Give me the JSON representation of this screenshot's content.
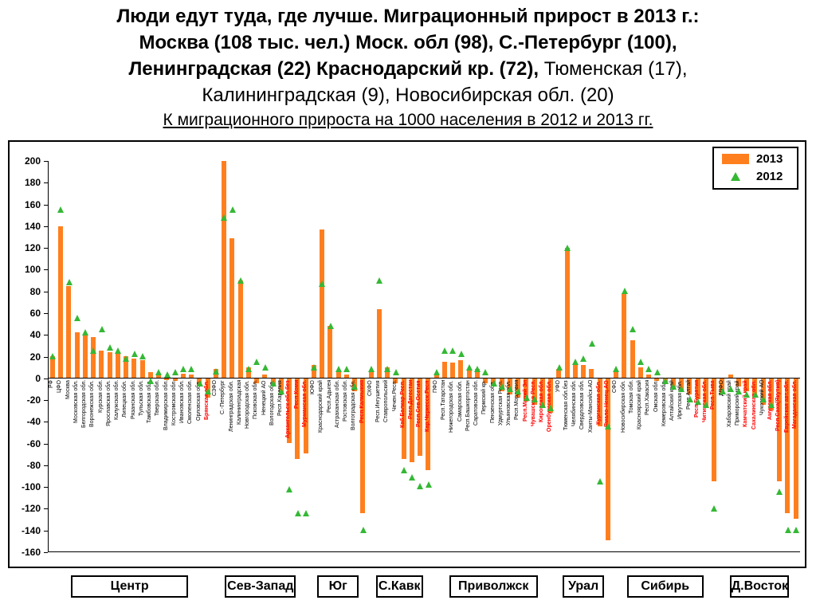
{
  "title": {
    "line1": "Люди едут туда, где лучше. Миграционный прирост в 2013 г.:",
    "line2": "Москва (108 тыс. чел.) Моск. обл (98), С.-Петербург (100),",
    "line3_bold": "Ленинградская (22) Краснодарский кр. (72),",
    "line3_regular": " Тюменская (17),",
    "line4": "Калининградская (9), Новосибирская обл. (20)",
    "subtitle": "К миграционного прироста на 1000 населения в 2012 и 2013 гг."
  },
  "colors": {
    "bar_2013": "#FF7F1F",
    "triangle_2012": "#35B835",
    "label_negative_red": "#FF0000",
    "label_black": "#000000"
  },
  "chart_data": {
    "type": "bar",
    "title": "К миграционного прироста на 1000 населения в 2012 и 2013 гг.",
    "ylim": [
      -160,
      200
    ],
    "ytick_step": 20,
    "yticks": [
      200,
      180,
      160,
      140,
      120,
      100,
      80,
      60,
      40,
      20,
      0,
      -20,
      -40,
      -60,
      -80,
      -100,
      -120,
      -140,
      -160
    ],
    "grid": false,
    "legend_position": "top-right",
    "series": [
      {
        "name": "2013",
        "type": "bar",
        "color": "#FF7F1F"
      },
      {
        "name": "2012",
        "type": "scatter",
        "marker": "triangle",
        "color": "#35B835"
      }
    ],
    "groups": [
      "Центр",
      "Сев-Запад",
      "Юг",
      "С.Кавк",
      "Приволжск",
      "Урал",
      "Сибирь",
      "Д.Восток"
    ],
    "regions": [
      {
        "name": "РФ",
        "v2013": 20,
        "v2012": 20,
        "red": false,
        "group": 0
      },
      {
        "name": "ЦФО",
        "v2013": 140,
        "v2012": 155,
        "red": false,
        "group": 0
      },
      {
        "name": "Москва",
        "v2013": 85,
        "v2012": 88,
        "red": false,
        "group": 0
      },
      {
        "name": "Московская обл.",
        "v2013": 42,
        "v2012": 55,
        "red": false,
        "group": 0
      },
      {
        "name": "Белгородская обл.",
        "v2013": 40,
        "v2012": 42,
        "red": false,
        "group": 0
      },
      {
        "name": "Воронежская обл.",
        "v2013": 38,
        "v2012": 25,
        "red": false,
        "group": 0
      },
      {
        "name": "Курская обл.",
        "v2013": 25,
        "v2012": 45,
        "red": false,
        "group": 0
      },
      {
        "name": "Ярославская обл.",
        "v2013": 24,
        "v2012": 28,
        "red": false,
        "group": 0
      },
      {
        "name": "Калужская обл.",
        "v2013": 22,
        "v2012": 25,
        "red": false,
        "group": 0
      },
      {
        "name": "Липецкая обл.",
        "v2013": 20,
        "v2012": 18,
        "red": false,
        "group": 0
      },
      {
        "name": "Рязанская обл.",
        "v2013": 18,
        "v2012": 22,
        "red": false,
        "group": 0
      },
      {
        "name": "Тульская обл.",
        "v2013": 16,
        "v2012": 20,
        "red": false,
        "group": 0
      },
      {
        "name": "Тамбовская обл.",
        "v2013": 5,
        "v2012": -3,
        "red": false,
        "group": 0
      },
      {
        "name": "Тверская обл.",
        "v2013": 4,
        "v2012": 5,
        "red": false,
        "group": 0
      },
      {
        "name": "Владимирская обл.",
        "v2013": -2,
        "v2012": 3,
        "red": false,
        "group": 0
      },
      {
        "name": "Костромская обл.",
        "v2013": -3,
        "v2012": 5,
        "red": false,
        "group": 0
      },
      {
        "name": "Ивановская обл.",
        "v2013": 4,
        "v2012": 8,
        "red": false,
        "group": 0
      },
      {
        "name": "Смоленская обл.",
        "v2013": 3,
        "v2012": 8,
        "red": false,
        "group": 0
      },
      {
        "name": "Орловская обл.",
        "v2013": -8,
        "v2012": -5,
        "red": false,
        "group": 0
      },
      {
        "name": "Брянская обл.",
        "v2013": -18,
        "v2012": -12,
        "red": true,
        "group": 0
      },
      {
        "name": "СЗФО",
        "v2013": 8,
        "v2012": 6,
        "red": false,
        "group": 1
      },
      {
        "name": "С.-Петербург",
        "v2013": 200,
        "v2012": 148,
        "red": false,
        "group": 1
      },
      {
        "name": "Ленинградская обл.",
        "v2013": 129,
        "v2012": 155,
        "red": false,
        "group": 1
      },
      {
        "name": "Калининградская",
        "v2013": 90,
        "v2012": 90,
        "red": false,
        "group": 1
      },
      {
        "name": "Новгородская обл.",
        "v2013": 10,
        "v2012": 8,
        "red": false,
        "group": 1
      },
      {
        "name": "Псковская обл.",
        "v2013": -5,
        "v2012": 15,
        "red": false,
        "group": 1
      },
      {
        "name": "Ненецкий АО",
        "v2013": 3,
        "v2012": 10,
        "red": false,
        "group": 1
      },
      {
        "name": "Вологодская обл.",
        "v2013": -8,
        "v2012": -5,
        "red": false,
        "group": 1
      },
      {
        "name": "Респ.Карелия",
        "v2013": -15,
        "v2012": -12,
        "red": false,
        "group": 1
      },
      {
        "name": "Архангельск.обл.без",
        "v2013": -60,
        "v2012": -103,
        "red": true,
        "group": 1
      },
      {
        "name": "Респ.Коми",
        "v2013": -75,
        "v2012": -125,
        "red": true,
        "group": 1
      },
      {
        "name": "Мурманская обл.",
        "v2013": -70,
        "v2012": -125,
        "red": true,
        "group": 1
      },
      {
        "name": "ЮФО",
        "v2013": 12,
        "v2012": 10,
        "red": false,
        "group": 2
      },
      {
        "name": "Краснодарский край",
        "v2013": 137,
        "v2012": 87,
        "red": false,
        "group": 2
      },
      {
        "name": "Респ.Адыгея",
        "v2013": 48,
        "v2012": 48,
        "red": false,
        "group": 2
      },
      {
        "name": "Астраханская обл.",
        "v2013": 5,
        "v2012": 8,
        "red": false,
        "group": 2
      },
      {
        "name": "Ростовская обл.",
        "v2013": 3,
        "v2012": 8,
        "red": false,
        "group": 2
      },
      {
        "name": "Волгоградская обл.",
        "v2013": -12,
        "v2012": -8,
        "red": false,
        "group": 2
      },
      {
        "name": "Респ.Калмыкия",
        "v2013": -125,
        "v2012": -140,
        "red": true,
        "group": 2
      },
      {
        "name": "СКФО",
        "v2013": 5,
        "v2012": 8,
        "red": false,
        "group": 3
      },
      {
        "name": "Респ.Ингушетия",
        "v2013": 63,
        "v2012": 90,
        "red": false,
        "group": 3
      },
      {
        "name": "Ставропольский",
        "v2013": 10,
        "v2012": 8,
        "red": false,
        "group": 3
      },
      {
        "name": "Чечен.Респ.",
        "v2013": -5,
        "v2012": 5,
        "red": false,
        "group": 3
      },
      {
        "name": "Каб.Балкар.Респ.",
        "v2013": -75,
        "v2012": -85,
        "red": true,
        "group": 3
      },
      {
        "name": "Респ.Дагестан",
        "v2013": -78,
        "v2012": -92,
        "red": true,
        "group": 3
      },
      {
        "name": "Респ.Сев.Осетия",
        "v2013": -72,
        "v2012": -100,
        "red": true,
        "group": 3
      },
      {
        "name": "Кар.Черкесск.Респ",
        "v2013": -85,
        "v2012": -98,
        "red": true,
        "group": 3
      },
      {
        "name": "ПФО",
        "v2013": 3,
        "v2012": 5,
        "red": false,
        "group": 4
      },
      {
        "name": "Респ.Татарстан",
        "v2013": 15,
        "v2012": 25,
        "red": false,
        "group": 4
      },
      {
        "name": "Нижегородская обл.",
        "v2013": 14,
        "v2012": 25,
        "red": false,
        "group": 4
      },
      {
        "name": "Самарская обл.",
        "v2013": 16,
        "v2012": 22,
        "red": false,
        "group": 4
      },
      {
        "name": "Респ.Башкортостан",
        "v2013": 8,
        "v2012": 10,
        "red": false,
        "group": 4
      },
      {
        "name": "Саратовская обл.",
        "v2013": 8,
        "v2012": 8,
        "red": false,
        "group": 4
      },
      {
        "name": "Пермский кр.",
        "v2013": -5,
        "v2012": 5,
        "red": false,
        "group": 4
      },
      {
        "name": "Пензенская обл.",
        "v2013": -8,
        "v2012": -5,
        "red": false,
        "group": 4
      },
      {
        "name": "Удмуртская Респ.",
        "v2013": -12,
        "v2012": -8,
        "red": false,
        "group": 4
      },
      {
        "name": "Ульяновская обл.",
        "v2013": -15,
        "v2012": -10,
        "red": false,
        "group": 4
      },
      {
        "name": "Респ.Мордовия",
        "v2013": -18,
        "v2012": -12,
        "red": false,
        "group": 4
      },
      {
        "name": "Респ.Марий Эл",
        "v2013": -22,
        "v2012": -18,
        "red": true,
        "group": 4
      },
      {
        "name": "Чувашская Респ.",
        "v2013": -25,
        "v2012": -20,
        "red": true,
        "group": 4
      },
      {
        "name": "Кировская обл.",
        "v2013": -28,
        "v2012": -25,
        "red": true,
        "group": 4
      },
      {
        "name": "Оренбургская обл.",
        "v2013": -32,
        "v2012": -28,
        "red": true,
        "group": 4
      },
      {
        "name": "УФО",
        "v2013": 8,
        "v2012": 10,
        "red": false,
        "group": 5
      },
      {
        "name": "Тюменская обл.без",
        "v2013": 120,
        "v2012": 120,
        "red": false,
        "group": 5
      },
      {
        "name": "Челябинская обл.",
        "v2013": 12,
        "v2012": 15,
        "red": false,
        "group": 5
      },
      {
        "name": "Свердловская обл.",
        "v2013": 12,
        "v2012": 18,
        "red": false,
        "group": 5
      },
      {
        "name": "Ханты-Мансийск.АО",
        "v2013": 8,
        "v2012": 32,
        "red": false,
        "group": 5
      },
      {
        "name": "Курганская обл.",
        "v2013": -45,
        "v2012": -95,
        "red": true,
        "group": 5
      },
      {
        "name": "Ямало-Ненец.АО",
        "v2013": -150,
        "v2012": -45,
        "red": true,
        "group": 5
      },
      {
        "name": "СФО",
        "v2013": 5,
        "v2012": 8,
        "red": false,
        "group": 6
      },
      {
        "name": "Новосибирская обл.",
        "v2013": 78,
        "v2012": 80,
        "red": false,
        "group": 6
      },
      {
        "name": "Томская обл.",
        "v2013": 35,
        "v2012": 45,
        "red": false,
        "group": 6
      },
      {
        "name": "Красноярский край",
        "v2013": 10,
        "v2012": 15,
        "red": false,
        "group": 6
      },
      {
        "name": "Респ.Хакасия",
        "v2013": 3,
        "v2012": 8,
        "red": false,
        "group": 6
      },
      {
        "name": "Омская обл.",
        "v2013": -3,
        "v2012": 5,
        "red": false,
        "group": 6
      },
      {
        "name": "Кемеровская обл.",
        "v2013": -5,
        "v2012": -3,
        "red": false,
        "group": 6
      },
      {
        "name": "Алтайский край",
        "v2013": -10,
        "v2012": -8,
        "red": false,
        "group": 6
      },
      {
        "name": "Иркутская обл.",
        "v2013": -12,
        "v2012": -10,
        "red": false,
        "group": 6
      },
      {
        "name": "Респ.Алтай",
        "v2013": -15,
        "v2012": -20,
        "red": false,
        "group": 6
      },
      {
        "name": "Респ.Бурятия",
        "v2013": -20,
        "v2012": -22,
        "red": true,
        "group": 6
      },
      {
        "name": "Читинская обл.",
        "v2013": -28,
        "v2012": -25,
        "red": true,
        "group": 6
      },
      {
        "name": "Респ.Тыва",
        "v2013": -95,
        "v2012": -120,
        "red": true,
        "group": 6
      },
      {
        "name": "ДВФО",
        "v2013": -15,
        "v2012": -12,
        "red": false,
        "group": 7
      },
      {
        "name": "Хабаровский край",
        "v2013": 3,
        "v2012": -10,
        "red": false,
        "group": 7
      },
      {
        "name": "Приморский край",
        "v2013": -8,
        "v2012": -12,
        "red": false,
        "group": 7
      },
      {
        "name": "Камчатский край",
        "v2013": -12,
        "v2012": -15,
        "red": true,
        "group": 7
      },
      {
        "name": "Сахалинская обл.",
        "v2013": -18,
        "v2012": -15,
        "red": true,
        "group": 7
      },
      {
        "name": "Чукотский АО",
        "v2013": -25,
        "v2012": -20,
        "red": false,
        "group": 7
      },
      {
        "name": "Амурская обл.",
        "v2013": -30,
        "v2012": -25,
        "red": true,
        "group": 7
      },
      {
        "name": "Респ.Саха(Якутия)",
        "v2013": -95,
        "v2012": -105,
        "red": true,
        "group": 7
      },
      {
        "name": "Еврейская авт.обл.",
        "v2013": -125,
        "v2012": -140,
        "red": true,
        "group": 7
      },
      {
        "name": "Магаданская обл.",
        "v2013": -130,
        "v2012": -140,
        "red": true,
        "group": 7
      }
    ]
  }
}
